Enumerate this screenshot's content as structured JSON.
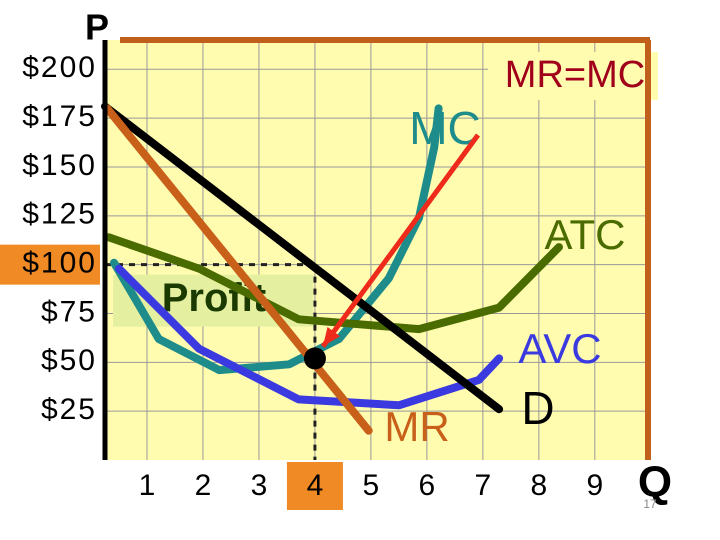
{
  "chart_data": {
    "type": "line",
    "y_label": "P",
    "x_label": "Q",
    "xlim": [
      0.25,
      9.95
    ],
    "ylim": [
      0,
      215
    ],
    "xticks": [
      1,
      2,
      3,
      4,
      5,
      6,
      7,
      8,
      9
    ],
    "yticks": [
      {
        "value": 200,
        "label": "$200"
      },
      {
        "value": 175,
        "label": "$175"
      },
      {
        "value": 150,
        "label": "$150"
      },
      {
        "value": 125,
        "label": "$125"
      },
      {
        "value": 100,
        "label": "$100"
      },
      {
        "value": 75,
        "label": "$75"
      },
      {
        "value": 50,
        "label": "$50"
      },
      {
        "value": 25,
        "label": "$25"
      }
    ],
    "grid": true,
    "series": [
      {
        "name": "MC",
        "color": "#1f8c8c",
        "x": [
          0.41,
          1.21,
          2.29,
          3.54,
          4.43,
          5.32,
          5.86,
          6.13,
          6.21
        ],
        "values": [
          101,
          62,
          46,
          49,
          62,
          93,
          124,
          160,
          180
        ]
      },
      {
        "name": "ATC",
        "color": "#4a6b00",
        "x": [
          0.32,
          1.93,
          3.71,
          5.86,
          7.29,
          8.36
        ],
        "values": [
          114,
          98,
          72,
          67,
          78,
          109
        ]
      },
      {
        "name": "AVC",
        "color": "#3a3ae0",
        "x": [
          0.5,
          1.93,
          3.71,
          5.5,
          6.93,
          7.29
        ],
        "values": [
          98,
          57,
          31,
          28,
          41,
          52
        ]
      },
      {
        "name": "D",
        "color": "#000000",
        "x": [
          0.25,
          7.29
        ],
        "values": [
          181,
          26
        ]
      },
      {
        "name": "MR",
        "color": "#c8601a",
        "x": [
          0.29,
          4.96
        ],
        "values": [
          180,
          15
        ]
      }
    ],
    "equilibrium": {
      "label": "MR=MC",
      "x": 4,
      "y": 52,
      "price": 100
    },
    "profit_label": "Profit",
    "slide_number": "17"
  }
}
